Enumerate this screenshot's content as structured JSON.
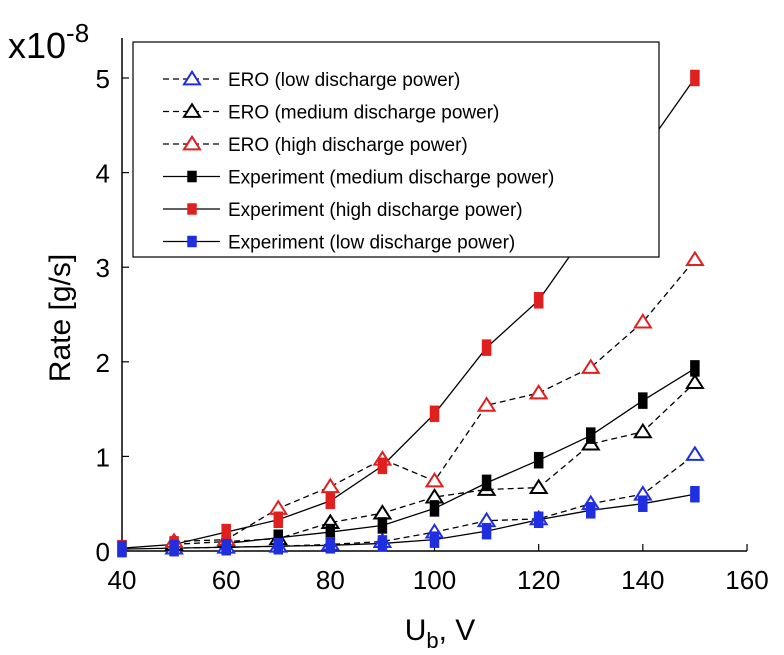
{
  "chart_data": {
    "type": "line",
    "scale_label": "x10",
    "scale_exponent": "-8",
    "ylabel": "Rate [g/s]",
    "xlabel_main": "U",
    "xlabel_sub": "b",
    "xlabel_tail": ", V",
    "xlim": [
      40,
      160
    ],
    "ylim": [
      0,
      5
    ],
    "xticks": [
      "40",
      "60",
      "80",
      "100",
      "120",
      "140",
      "160"
    ],
    "yticks": [
      "0",
      "1",
      "2",
      "3",
      "4",
      "5"
    ],
    "grid": false,
    "legend_position": "top-left",
    "series": [
      {
        "name": "ERO (low discharge power)",
        "kind": "model",
        "marker": "triangle-open",
        "line": "dashed",
        "color": "#1f2fe0",
        "x": [
          50,
          60,
          70,
          80,
          90,
          100,
          110,
          120,
          130,
          140,
          150
        ],
        "y": [
          0.03,
          0.04,
          0.05,
          0.07,
          0.1,
          0.2,
          0.32,
          0.34,
          0.5,
          0.6,
          1.02
        ]
      },
      {
        "name": "ERO (medium discharge power)",
        "kind": "model",
        "marker": "triangle-open",
        "line": "dashed",
        "color": "#000000",
        "x": [
          50,
          60,
          70,
          80,
          90,
          100,
          110,
          120,
          130,
          140,
          150
        ],
        "y": [
          0.07,
          0.1,
          0.13,
          0.3,
          0.4,
          0.57,
          0.65,
          0.67,
          1.13,
          1.26,
          1.78
        ]
      },
      {
        "name": "ERO (high discharge power)",
        "kind": "model",
        "marker": "triangle-open",
        "line": "dashed",
        "color": "#e01f1f",
        "x": [
          50,
          60,
          70,
          80,
          90,
          100,
          110,
          120,
          130,
          140,
          150
        ],
        "y": [
          0.1,
          0.12,
          0.45,
          0.68,
          0.97,
          0.74,
          1.54,
          1.67,
          1.94,
          2.42,
          3.08
        ]
      },
      {
        "name": "Experiment (medium discharge power)",
        "kind": "experiment",
        "marker": "square-filled",
        "line": "solid",
        "color": "#000000",
        "x": [
          60,
          70,
          80,
          90,
          100,
          110,
          120,
          130,
          140,
          150
        ],
        "y": [
          0.08,
          0.14,
          0.2,
          0.27,
          0.45,
          0.72,
          0.96,
          1.22,
          1.59,
          1.93
        ]
      },
      {
        "name": "Experiment (high discharge power)",
        "kind": "experiment",
        "marker": "square-filled",
        "line": "solid",
        "color": "#e01f1f",
        "x": [
          40,
          50,
          60,
          70,
          80,
          90,
          100,
          110,
          120,
          150
        ],
        "y": [
          0.03,
          0.07,
          0.2,
          0.33,
          0.53,
          0.9,
          1.45,
          2.15,
          2.65,
          5.0
        ]
      },
      {
        "name": "Experiment (low discharge power)",
        "kind": "experiment",
        "marker": "square-filled",
        "line": "solid",
        "color": "#1f2fe0",
        "x": [
          40,
          50,
          60,
          70,
          80,
          90,
          100,
          110,
          120,
          130,
          140,
          150
        ],
        "y": [
          0.02,
          0.03,
          0.04,
          0.05,
          0.06,
          0.08,
          0.12,
          0.21,
          0.33,
          0.43,
          0.5,
          0.6
        ]
      }
    ]
  }
}
